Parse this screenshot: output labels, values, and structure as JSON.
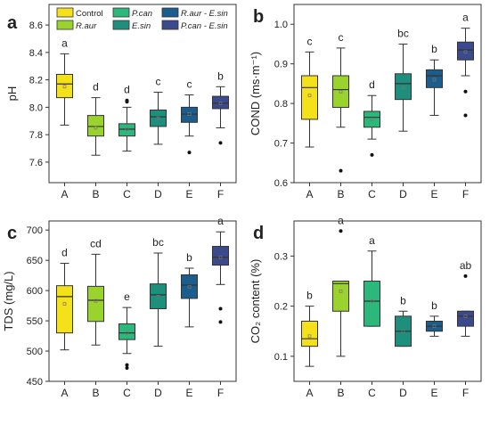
{
  "legend": [
    {
      "name": "Control",
      "color": "#f5e11a"
    },
    {
      "name": "P.can",
      "color": "#2bb87a"
    },
    {
      "name": "R.aur - E.sin",
      "color": "#1b5e8e"
    },
    {
      "name": "R.aur",
      "color": "#9ad32d"
    },
    {
      "name": "E.sin",
      "color": "#1e8f7c"
    },
    {
      "name": "P.can - E.sin",
      "color": "#3a4a8c"
    }
  ],
  "chart_data": [
    {
      "type": "box",
      "panel_label": "a",
      "ylabel": "pH",
      "categories": [
        "A",
        "B",
        "C",
        "D",
        "E",
        "F"
      ],
      "ylim": [
        7.45,
        8.75
      ],
      "yticks": [
        7.6,
        7.8,
        8.0,
        8.2,
        8.4,
        8.6
      ],
      "boxes": [
        {
          "min": 7.87,
          "q1": 8.07,
          "median": 8.17,
          "q3": 8.24,
          "max": 8.39,
          "mean": 8.15,
          "outliers": [],
          "letter": "a"
        },
        {
          "min": 7.65,
          "q1": 7.79,
          "median": 7.86,
          "q3": 7.94,
          "max": 8.07,
          "mean": 7.85,
          "outliers": [],
          "letter": "d"
        },
        {
          "min": 7.68,
          "q1": 7.79,
          "median": 7.84,
          "q3": 7.88,
          "max": 8.0,
          "mean": 7.84,
          "outliers": [
            8.04,
            8.05
          ],
          "letter": "d"
        },
        {
          "min": 7.73,
          "q1": 7.86,
          "median": 7.93,
          "q3": 7.98,
          "max": 8.11,
          "mean": 7.92,
          "outliers": [],
          "letter": "c"
        },
        {
          "min": 7.79,
          "q1": 7.89,
          "median": 7.95,
          "q3": 8.0,
          "max": 8.09,
          "mean": 7.95,
          "outliers": [
            7.67
          ],
          "letter": "c"
        },
        {
          "min": 7.85,
          "q1": 7.99,
          "median": 8.03,
          "q3": 8.08,
          "max": 8.15,
          "mean": 8.03,
          "outliers": [
            7.74
          ],
          "letter": "b"
        }
      ]
    },
    {
      "type": "box",
      "panel_label": "b",
      "ylabel": "COND (ms·m⁻¹)",
      "categories": [
        "A",
        "B",
        "C",
        "D",
        "E",
        "F"
      ],
      "ylim": [
        0.6,
        1.05
      ],
      "yticks": [
        0.6,
        0.7,
        0.8,
        0.9,
        1.0
      ],
      "boxes": [
        {
          "min": 0.69,
          "q1": 0.76,
          "median": 0.84,
          "q3": 0.87,
          "max": 0.93,
          "mean": 0.82,
          "outliers": [],
          "letter": "c"
        },
        {
          "min": 0.74,
          "q1": 0.79,
          "median": 0.835,
          "q3": 0.87,
          "max": 0.94,
          "mean": 0.83,
          "outliers": [
            0.63
          ],
          "letter": "c"
        },
        {
          "min": 0.71,
          "q1": 0.74,
          "median": 0.765,
          "q3": 0.78,
          "max": 0.82,
          "mean": 0.76,
          "outliers": [
            0.67
          ],
          "letter": "d"
        },
        {
          "min": 0.73,
          "q1": 0.81,
          "median": 0.85,
          "q3": 0.875,
          "max": 0.95,
          "mean": 0.84,
          "outliers": [],
          "letter": "bc"
        },
        {
          "min": 0.77,
          "q1": 0.84,
          "median": 0.87,
          "q3": 0.885,
          "max": 0.91,
          "mean": 0.86,
          "outliers": [],
          "letter": "b"
        },
        {
          "min": 0.87,
          "q1": 0.91,
          "median": 0.935,
          "q3": 0.955,
          "max": 0.99,
          "mean": 0.93,
          "outliers": [
            0.83,
            0.77
          ],
          "letter": "a"
        }
      ]
    },
    {
      "type": "box",
      "panel_label": "c",
      "ylabel": "TDS (mg/L)",
      "categories": [
        "A",
        "B",
        "C",
        "D",
        "E",
        "F"
      ],
      "ylim": [
        450,
        715
      ],
      "yticks": [
        450,
        500,
        550,
        600,
        650,
        700
      ],
      "boxes": [
        {
          "min": 502,
          "q1": 530,
          "median": 590,
          "q3": 608,
          "max": 645,
          "mean": 578,
          "outliers": [],
          "letter": "d"
        },
        {
          "min": 510,
          "q1": 549,
          "median": 584,
          "q3": 607,
          "max": 660,
          "mean": 583,
          "outliers": [],
          "letter": "cd"
        },
        {
          "min": 496,
          "q1": 519,
          "median": 530,
          "q3": 545,
          "max": 572,
          "mean": 530,
          "outliers": [
            477,
            472
          ],
          "letter": "e"
        },
        {
          "min": 508,
          "q1": 570,
          "median": 593,
          "q3": 611,
          "max": 662,
          "mean": 590,
          "outliers": [],
          "letter": "bc"
        },
        {
          "min": 540,
          "q1": 587,
          "median": 609,
          "q3": 626,
          "max": 637,
          "mean": 606,
          "outliers": [],
          "letter": "b"
        },
        {
          "min": 610,
          "q1": 642,
          "median": 655,
          "q3": 673,
          "max": 697,
          "mean": 655,
          "outliers": [
            570,
            548
          ],
          "letter": "a"
        }
      ]
    },
    {
      "type": "box",
      "panel_label": "d",
      "ylabel": "CO₂ content (%)",
      "categories": [
        "A",
        "B",
        "C",
        "D",
        "E",
        "F"
      ],
      "ylim": [
        0.05,
        0.37
      ],
      "yticks": [
        0.1,
        0.2,
        0.3
      ],
      "boxes": [
        {
          "min": 0.08,
          "q1": 0.12,
          "median": 0.135,
          "q3": 0.17,
          "max": 0.2,
          "mean": 0.14,
          "outliers": [],
          "letter": "b"
        },
        {
          "min": 0.1,
          "q1": 0.19,
          "median": 0.245,
          "q3": 0.25,
          "max": 0.25,
          "mean": 0.23,
          "outliers": [
            0.35
          ],
          "letter": "a"
        },
        {
          "min": 0.16,
          "q1": 0.16,
          "median": 0.21,
          "q3": 0.25,
          "max": 0.31,
          "mean": 0.21,
          "outliers": [],
          "letter": "a"
        },
        {
          "min": 0.12,
          "q1": 0.12,
          "median": 0.15,
          "q3": 0.18,
          "max": 0.19,
          "mean": 0.15,
          "outliers": [],
          "letter": "b"
        },
        {
          "min": 0.14,
          "q1": 0.15,
          "median": 0.16,
          "q3": 0.17,
          "max": 0.18,
          "mean": 0.16,
          "outliers": [],
          "letter": "b"
        },
        {
          "min": 0.14,
          "q1": 0.16,
          "median": 0.18,
          "q3": 0.19,
          "max": 0.19,
          "mean": 0.18,
          "outliers": [
            0.26
          ],
          "letter": "ab"
        }
      ]
    }
  ]
}
